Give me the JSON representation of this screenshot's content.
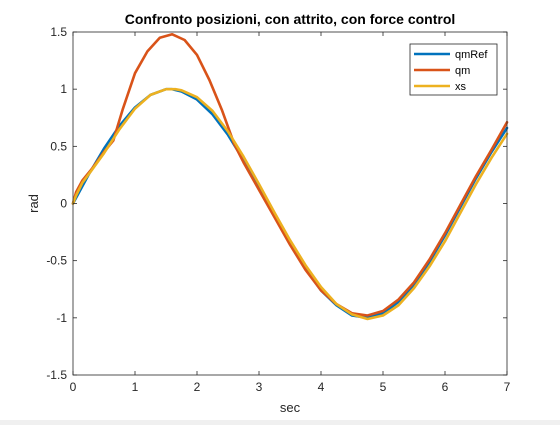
{
  "chart_data": {
    "type": "line",
    "title": "Confronto posizioni, con attrito, con force control",
    "xlabel": "sec",
    "ylabel": "rad",
    "xlim": [
      0,
      7
    ],
    "ylim": [
      -1.5,
      1.5
    ],
    "xticks": [
      0,
      1,
      2,
      3,
      4,
      5,
      6,
      7
    ],
    "xtick_labels": [
      "0",
      "1",
      "2",
      "3",
      "4",
      "5",
      "6",
      "7"
    ],
    "yticks": [
      -1.5,
      -1,
      -0.5,
      0,
      0.5,
      1,
      1.5
    ],
    "ytick_labels": [
      "-1.5",
      "-1",
      "-0.5",
      "0",
      "0.5",
      "1",
      "1.5"
    ],
    "grid": false,
    "legend_position": "top-right",
    "series": [
      {
        "name": "qmRef",
        "color": "#0072BD",
        "x": [
          0,
          0.25,
          0.5,
          0.75,
          1.0,
          1.25,
          1.5,
          1.6,
          1.75,
          2.0,
          2.25,
          2.5,
          2.75,
          3.0,
          3.25,
          3.5,
          3.75,
          4.0,
          4.25,
          4.5,
          4.75,
          5.0,
          5.25,
          5.5,
          5.75,
          6.0,
          6.25,
          6.5,
          6.75,
          7.0
        ],
        "y": [
          0,
          0.25,
          0.48,
          0.68,
          0.84,
          0.95,
          1.0,
          1.0,
          0.98,
          0.91,
          0.78,
          0.6,
          0.38,
          0.14,
          -0.11,
          -0.35,
          -0.57,
          -0.76,
          -0.89,
          -0.98,
          -1.0,
          -0.96,
          -0.86,
          -0.71,
          -0.51,
          -0.28,
          -0.03,
          0.22,
          0.45,
          0.66
        ]
      },
      {
        "name": "qm",
        "color": "#D95319",
        "x": [
          0,
          0.05,
          0.15,
          0.3,
          0.5,
          0.65,
          0.8,
          1.0,
          1.2,
          1.4,
          1.6,
          1.8,
          2.0,
          2.2,
          2.4,
          2.6,
          2.75,
          3.0,
          3.25,
          3.5,
          3.75,
          4.0,
          4.25,
          4.5,
          4.75,
          5.0,
          5.25,
          5.5,
          5.75,
          6.0,
          6.25,
          6.5,
          6.75,
          7.0
        ],
        "y": [
          0.0,
          0.1,
          0.2,
          0.3,
          0.45,
          0.55,
          0.82,
          1.14,
          1.33,
          1.45,
          1.48,
          1.43,
          1.3,
          1.08,
          0.82,
          0.52,
          0.36,
          0.12,
          -0.12,
          -0.36,
          -0.58,
          -0.76,
          -0.88,
          -0.96,
          -0.98,
          -0.94,
          -0.84,
          -0.69,
          -0.49,
          -0.26,
          -0.01,
          0.24,
          0.47,
          0.71
        ]
      },
      {
        "name": "xs",
        "color": "#EDB120",
        "x": [
          0,
          0.05,
          0.15,
          0.3,
          0.5,
          0.75,
          1.0,
          1.25,
          1.5,
          1.65,
          1.75,
          2.0,
          2.25,
          2.5,
          2.75,
          3.0,
          3.25,
          3.5,
          3.75,
          4.0,
          4.25,
          4.5,
          4.75,
          5.0,
          5.25,
          5.5,
          5.75,
          6.0,
          6.25,
          6.5,
          6.75,
          7.0
        ],
        "y": [
          0.0,
          0.07,
          0.18,
          0.29,
          0.44,
          0.65,
          0.83,
          0.95,
          1.0,
          1.0,
          0.99,
          0.93,
          0.81,
          0.63,
          0.41,
          0.17,
          -0.08,
          -0.32,
          -0.54,
          -0.73,
          -0.88,
          -0.97,
          -1.01,
          -0.98,
          -0.89,
          -0.74,
          -0.55,
          -0.33,
          -0.08,
          0.17,
          0.4,
          0.61
        ]
      }
    ]
  }
}
